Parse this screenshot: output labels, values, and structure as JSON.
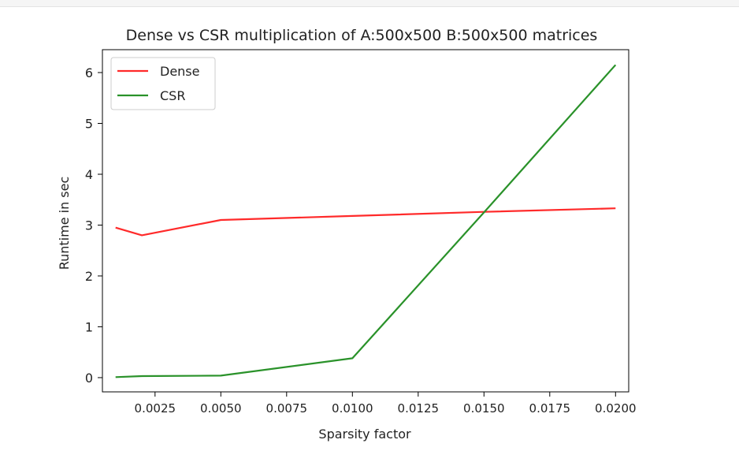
{
  "chart_data": {
    "type": "line",
    "title": "Dense vs CSR multiplication of A:500x500 B:500x500 matrices",
    "xlabel": "Sparsity factor",
    "ylabel": "Runtime in sec",
    "xlim": [
      0.0005,
      0.0205
    ],
    "ylim": [
      -0.28,
      6.45
    ],
    "xticks": [
      "0.0025",
      "0.0050",
      "0.0075",
      "0.0100",
      "0.0125",
      "0.0150",
      "0.0175",
      "0.0200"
    ],
    "yticks": [
      "0",
      "1",
      "2",
      "3",
      "4",
      "5",
      "6"
    ],
    "legend_position": "top-left",
    "grid": false,
    "series": [
      {
        "name": "Dense",
        "color": "#ff2a2a",
        "x": [
          0.001,
          0.002,
          0.005,
          0.01,
          0.015,
          0.02
        ],
        "y": [
          2.95,
          2.8,
          3.1,
          3.18,
          3.26,
          3.33
        ]
      },
      {
        "name": "CSR",
        "color": "#2a922a",
        "x": [
          0.001,
          0.002,
          0.005,
          0.01,
          0.015,
          0.02
        ],
        "y": [
          0.01,
          0.03,
          0.04,
          0.38,
          3.25,
          6.15
        ]
      }
    ]
  }
}
